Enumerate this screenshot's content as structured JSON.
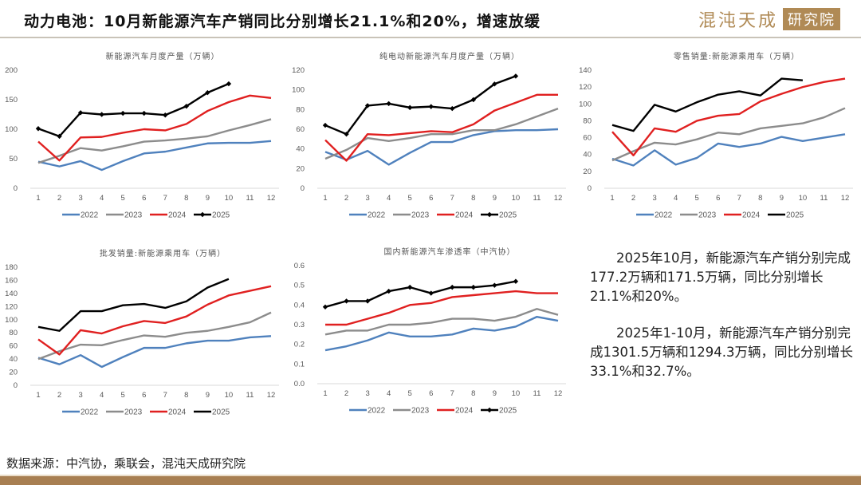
{
  "header": {
    "title": "动力电池：10月新能源汽车产销同比分别增长21.1%和20%，增速放缓",
    "brand_name": "混沌天成",
    "brand_tag": "研究院"
  },
  "colors": {
    "2022": "#4f81bd",
    "2023": "#8c8c8c",
    "2024": "#e02020",
    "2025": "#000000",
    "brand": "#b08a55"
  },
  "chart_data": [
    {
      "type": "line",
      "title": "新能源汽车月度产量（万辆）",
      "xlabel": "",
      "ylabel": "",
      "categories": [
        "1",
        "2",
        "3",
        "4",
        "5",
        "6",
        "7",
        "8",
        "9",
        "10",
        "11",
        "12"
      ],
      "ylim": [
        0,
        200
      ],
      "yticks": [
        "0",
        "50",
        "100",
        "150",
        "200"
      ],
      "legend": "bottom",
      "series": [
        {
          "name": "2022",
          "values": [
            45,
            37,
            46,
            31,
            46,
            59,
            62,
            69,
            76,
            77,
            77,
            80
          ],
          "markers": false
        },
        {
          "name": "2023",
          "values": [
            43,
            55,
            68,
            64,
            71,
            79,
            81,
            84,
            88,
            98,
            107,
            117
          ],
          "markers": false
        },
        {
          "name": "2024",
          "values": [
            79,
            47,
            86,
            87,
            94,
            100,
            98,
            109,
            131,
            146,
            157,
            153
          ],
          "markers": false
        },
        {
          "name": "2025",
          "values": [
            101,
            88,
            128,
            125,
            127,
            127,
            124,
            139,
            162,
            177
          ],
          "markers": true
        }
      ]
    },
    {
      "type": "line",
      "title": "纯电动新能源汽车月度产量（万辆）",
      "xlabel": "",
      "ylabel": "",
      "categories": [
        "1",
        "2",
        "3",
        "4",
        "5",
        "6",
        "7",
        "8",
        "9",
        "10",
        "11",
        "12"
      ],
      "ylim": [
        0,
        120
      ],
      "yticks": [
        "0",
        "20",
        "40",
        "60",
        "80",
        "100",
        "120"
      ],
      "legend": "bottom",
      "series": [
        {
          "name": "2022",
          "values": [
            37,
            29,
            38,
            24,
            36,
            47,
            47,
            54,
            58,
            59,
            59,
            60
          ],
          "markers": false
        },
        {
          "name": "2023",
          "values": [
            30,
            39,
            51,
            48,
            51,
            55,
            55,
            59,
            59,
            65,
            73,
            81
          ],
          "markers": false
        },
        {
          "name": "2024",
          "values": [
            49,
            28,
            55,
            54,
            56,
            58,
            57,
            65,
            79,
            87,
            95,
            95
          ],
          "markers": false
        },
        {
          "name": "2025",
          "values": [
            64,
            55,
            84,
            86,
            82,
            83,
            81,
            90,
            106,
            114
          ],
          "markers": true
        }
      ]
    },
    {
      "type": "line",
      "title": "零售销量:新能源乘用车（万辆）",
      "xlabel": "",
      "ylabel": "",
      "categories": [
        "1",
        "2",
        "3",
        "4",
        "5",
        "6",
        "7",
        "8",
        "9",
        "10",
        "11",
        "12"
      ],
      "ylim": [
        0,
        140
      ],
      "yticks": [
        "0",
        "20",
        "40",
        "60",
        "80",
        "100",
        "120",
        "140"
      ],
      "legend": "bottom",
      "series": [
        {
          "name": "2022",
          "values": [
            35,
            27,
            45,
            28,
            36,
            53,
            49,
            53,
            61,
            56,
            60,
            64
          ],
          "markers": false
        },
        {
          "name": "2023",
          "values": [
            33,
            44,
            54,
            52,
            58,
            66,
            64,
            71,
            74,
            77,
            84,
            95
          ],
          "markers": false
        },
        {
          "name": "2024",
          "values": [
            67,
            39,
            71,
            67,
            80,
            86,
            88,
            103,
            112,
            120,
            126,
            130
          ],
          "markers": false
        },
        {
          "name": "2025",
          "values": [
            75,
            68,
            99,
            91,
            102,
            111,
            115,
            110,
            130,
            128
          ],
          "markers": false
        }
      ]
    },
    {
      "type": "line",
      "title": "批发销量:新能源乘用车（万辆）",
      "xlabel": "",
      "ylabel": "",
      "categories": [
        "1",
        "2",
        "3",
        "4",
        "5",
        "6",
        "7",
        "8",
        "9",
        "10",
        "11",
        "12"
      ],
      "ylim": [
        0,
        180
      ],
      "yticks": [
        "0",
        "20",
        "40",
        "60",
        "80",
        "100",
        "120",
        "140",
        "160",
        "180"
      ],
      "legend": "bottom",
      "series": [
        {
          "name": "2022",
          "values": [
            42,
            32,
            46,
            28,
            43,
            57,
            57,
            64,
            68,
            68,
            73,
            75
          ],
          "markers": false
        },
        {
          "name": "2023",
          "values": [
            40,
            52,
            62,
            61,
            69,
            76,
            74,
            80,
            83,
            89,
            96,
            111
          ],
          "markers": false
        },
        {
          "name": "2024",
          "values": [
            70,
            47,
            84,
            79,
            90,
            98,
            95,
            105,
            123,
            137,
            144,
            151
          ],
          "markers": false
        },
        {
          "name": "2025",
          "values": [
            89,
            83,
            113,
            113,
            122,
            124,
            118,
            128,
            149,
            162
          ],
          "markers": false
        }
      ]
    },
    {
      "type": "line",
      "title": "国内新能源汽车渗透率（中汽协）",
      "xlabel": "",
      "ylabel": "",
      "categories": [
        "1",
        "2",
        "3",
        "4",
        "5",
        "6",
        "7",
        "8",
        "9",
        "10",
        "11",
        "12"
      ],
      "ylim": [
        0,
        0.6
      ],
      "yticks": [
        "0.0",
        "0.1",
        "0.2",
        "0.3",
        "0.4",
        "0.5",
        "0.6"
      ],
      "legend": "bottom",
      "series": [
        {
          "name": "2022",
          "values": [
            0.17,
            0.19,
            0.22,
            0.26,
            0.24,
            0.24,
            0.25,
            0.28,
            0.27,
            0.29,
            0.34,
            0.32
          ],
          "markers": false
        },
        {
          "name": "2023",
          "values": [
            0.25,
            0.27,
            0.27,
            0.3,
            0.3,
            0.31,
            0.33,
            0.33,
            0.32,
            0.34,
            0.38,
            0.35
          ],
          "markers": false
        },
        {
          "name": "2024",
          "values": [
            0.3,
            0.3,
            0.33,
            0.36,
            0.4,
            0.41,
            0.44,
            0.45,
            0.46,
            0.47,
            0.46,
            0.46
          ],
          "markers": false
        },
        {
          "name": "2025",
          "values": [
            0.39,
            0.42,
            0.42,
            0.47,
            0.49,
            0.46,
            0.49,
            0.49,
            0.5,
            0.52
          ],
          "markers": true
        }
      ]
    }
  ],
  "summary": {
    "paragraphs": [
      "2025年10月，新能源汽车产销分别完成177.2万辆和171.5万辆，同比分别增长21.1%和20%。",
      "2025年1-10月，新能源汽车产销分别完成1301.5万辆和1294.3万辆，同比分别增长33.1%和32.7%。"
    ]
  },
  "source": "数据来源：中汽协，乘联会，混沌天成研究院"
}
